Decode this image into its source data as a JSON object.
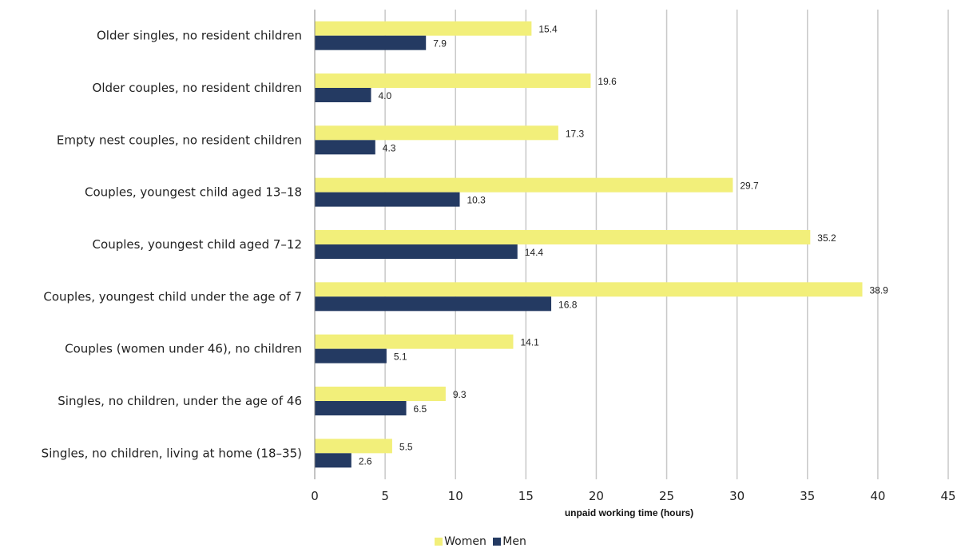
{
  "chart_data": {
    "type": "bar",
    "orientation": "horizontal",
    "categories": [
      "Older singles, no resident children",
      "Older couples, no resident children",
      "Empty nest couples, no resident children",
      "Couples, youngest child aged 13–18",
      "Couples, youngest child aged 7–12",
      "Couples, youngest child under the age of 7",
      "Couples (women under 46), no children",
      "Singles, no children, under the age of 46",
      "Singles, no children, living at home (18–35)"
    ],
    "series": [
      {
        "name": "Women",
        "color": "#f2ef7a",
        "values": [
          15.4,
          19.6,
          17.3,
          29.7,
          35.2,
          38.9,
          14.1,
          9.3,
          5.5
        ],
        "labels": [
          "15.4",
          "19.6",
          "17.3",
          "29.7",
          "35.2",
          "38.9",
          "14.1",
          "9.3",
          "5.5"
        ]
      },
      {
        "name": "Men",
        "color": "#243a62",
        "values": [
          7.9,
          4.0,
          4.3,
          10.3,
          14.4,
          16.8,
          5.1,
          6.5,
          2.6
        ],
        "labels": [
          "7.9",
          "4.0",
          "4.3",
          "10.3",
          "14.4",
          "16.8",
          "5.1",
          "6.5",
          "2.6"
        ]
      }
    ],
    "xlabel": "unpaid working time (hours)",
    "xlim": [
      0,
      45
    ],
    "xticks": [
      0,
      5,
      10,
      15,
      20,
      25,
      30,
      35,
      40,
      45
    ],
    "grid": "vertical",
    "legend_position": "bottom-center"
  }
}
